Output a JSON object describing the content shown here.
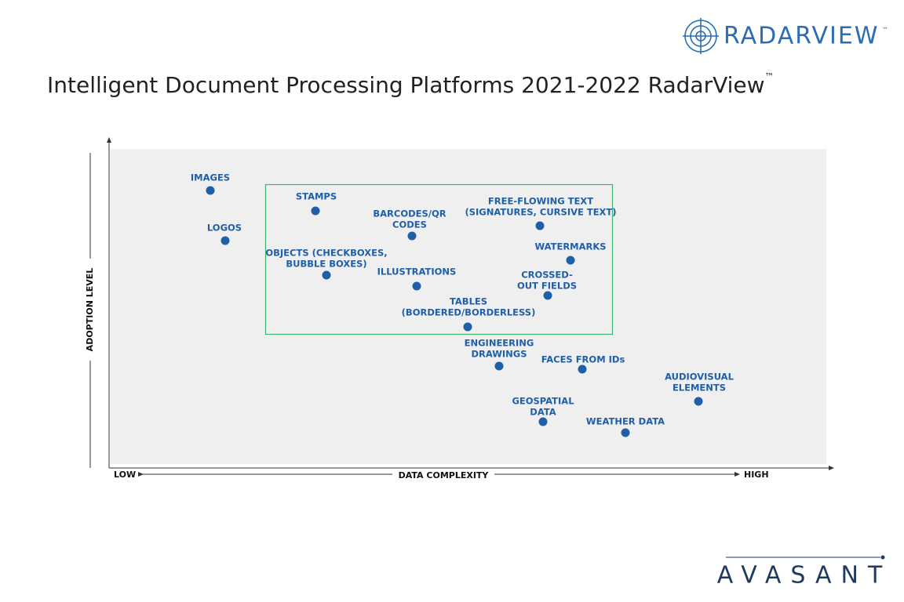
{
  "header": {
    "logo": "RADARVIEW",
    "logo_mark": "™",
    "title": "Intelligent Document Processing Platforms 2021-2022 RadarView",
    "title_mark": "™"
  },
  "axes": {
    "y_label": "ADOPTION LEVEL",
    "x_label": "DATA COMPLEXITY",
    "x_low": "LOW",
    "x_high": "HIGH"
  },
  "nodes": [
    {
      "lines": [
        "IMAGES"
      ]
    },
    {
      "lines": [
        "LOGOS"
      ]
    },
    {
      "lines": [
        "STAMPS"
      ]
    },
    {
      "lines": [
        "BARCODES/QR",
        "CODES"
      ]
    },
    {
      "lines": [
        "FREE-FLOWING TEXT",
        "(SIGNATURES, CURSIVE TEXT)"
      ]
    },
    {
      "lines": [
        "WATERMARKS"
      ]
    },
    {
      "lines": [
        "OBJECTS (CHECKBOXES,",
        "BUBBLE BOXES)"
      ]
    },
    {
      "lines": [
        "ILLUSTRATIONS"
      ]
    },
    {
      "lines": [
        "CROSSED-",
        "OUT FIELDS"
      ]
    },
    {
      "lines": [
        "TABLES",
        "(BORDERED/BORDERLESS)"
      ]
    },
    {
      "lines": [
        "ENGINEERING",
        "DRAWINGS"
      ]
    },
    {
      "lines": [
        "FACES FROM IDs"
      ]
    },
    {
      "lines": [
        "AUDIOVISUAL",
        "ELEMENTS"
      ]
    },
    {
      "lines": [
        "GEOSPATIAL",
        "DATA"
      ]
    },
    {
      "lines": [
        "WEATHER DATA"
      ]
    }
  ],
  "footer": {
    "brand": "AVASANT"
  }
}
